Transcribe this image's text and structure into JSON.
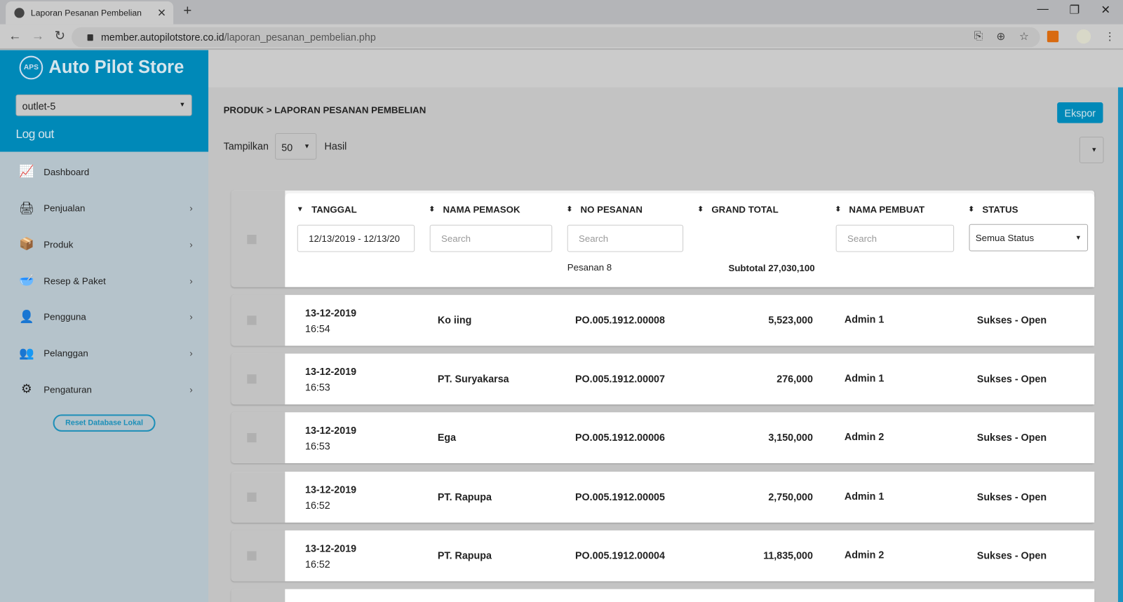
{
  "browser": {
    "tab_title": "Laporan Pesanan Pembelian",
    "url_host": "member.autopilotstore.co.id",
    "url_path": "/laporan_pesanan_pembelian.php"
  },
  "sidebar": {
    "brand": "Auto Pilot Store",
    "logo_text": "APS",
    "outlet": "outlet-5",
    "logout": "Log out",
    "items": [
      {
        "label": "Dashboard",
        "icon": "chart-icon"
      },
      {
        "label": "Penjualan",
        "icon": "cash-register-icon"
      },
      {
        "label": "Produk",
        "icon": "box-icon"
      },
      {
        "label": "Resep & Paket",
        "icon": "mortar-icon"
      },
      {
        "label": "Pengguna",
        "icon": "user-icon"
      },
      {
        "label": "Pelanggan",
        "icon": "customer-icon"
      },
      {
        "label": "Pengaturan",
        "icon": "gears-icon"
      }
    ],
    "reset": "Reset Database Lokal"
  },
  "main": {
    "breadcrumb": "PRODUK > LAPORAN PESANAN PEMBELIAN",
    "export": "Ekspor",
    "show_label": "Tampilkan",
    "show_value": "50",
    "result_label": "Hasil",
    "columns": [
      "TANGGAL",
      "NAMA PEMASOK",
      "NO PESANAN",
      "GRAND TOTAL",
      "NAMA PEMBUAT",
      "STATUS"
    ],
    "filters": {
      "date": "12/13/2019 - 12/13/20",
      "search": "Search",
      "status": "Semua Status"
    },
    "summary": {
      "orders": "Pesanan 8",
      "subtotal": "Subtotal 27,030,100"
    },
    "rows": [
      {
        "date": "13-12-2019",
        "time": "16:54",
        "supplier": "Ko iing",
        "po": "PO.005.1912.00008",
        "total": "5,523,000",
        "creator": "Admin 1",
        "status": "Sukses - Open"
      },
      {
        "date": "13-12-2019",
        "time": "16:53",
        "supplier": "PT. Suryakarsa",
        "po": "PO.005.1912.00007",
        "total": "276,000",
        "creator": "Admin 1",
        "status": "Sukses - Open"
      },
      {
        "date": "13-12-2019",
        "time": "16:53",
        "supplier": "Ega",
        "po": "PO.005.1912.00006",
        "total": "3,150,000",
        "creator": "Admin 2",
        "status": "Sukses - Open"
      },
      {
        "date": "13-12-2019",
        "time": "16:52",
        "supplier": "PT. Rapupa",
        "po": "PO.005.1912.00005",
        "total": "2,750,000",
        "creator": "Admin 1",
        "status": "Sukses - Open"
      },
      {
        "date": "13-12-2019",
        "time": "16:52",
        "supplier": "PT. Rapupa",
        "po": "PO.005.1912.00004",
        "total": "11,835,000",
        "creator": "Admin 2",
        "status": "Sukses - Open"
      }
    ]
  },
  "colors": {
    "accent": "#0089b8",
    "sidebar": "#b5c3cb"
  }
}
